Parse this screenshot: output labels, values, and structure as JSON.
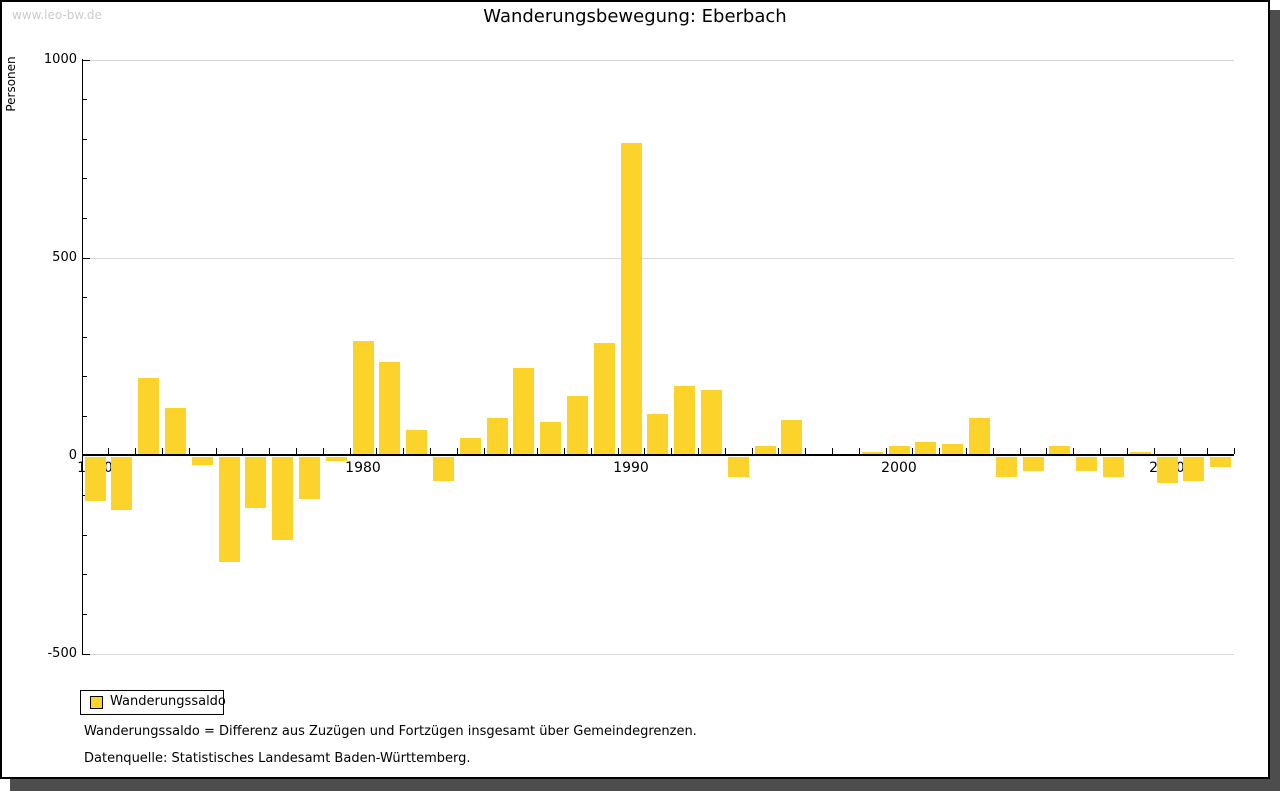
{
  "watermark": "www.leo-bw.de",
  "title": "Wanderungsbewegung: Eberbach",
  "legend": {
    "label": "Wanderungssaldo",
    "swatch_color": "#FCD32B"
  },
  "footnotes": [
    "Wanderungssaldo = Differenz aus Zuzügen und Fortzügen insgesamt über Gemeindegrenzen.",
    "Datenquelle: Statistisches Landesamt Baden-Württemberg."
  ],
  "colors": {
    "bar": "#FCD32B",
    "gridline": "#d8d8d8",
    "axis": "#000000",
    "watermark": "#cccccc",
    "window_shadow": "#4d4d4d"
  },
  "chart_data": {
    "type": "bar",
    "title": "Wanderungsbewegung: Eberbach",
    "xlabel": "",
    "ylabel": "Personen",
    "ylim": [
      -500,
      1000
    ],
    "yticks": [
      1000,
      500,
      0,
      -500
    ],
    "ytick_minor_interval": 100,
    "gridline_values": [
      1000,
      500,
      -500
    ],
    "grid": "horizontal major, light gray",
    "xticks_labeled": [
      1970,
      1980,
      1990,
      2000,
      2010
    ],
    "legend_position": "bottom-left",
    "series_name": "Wanderungssaldo",
    "bar_color": "#FCD32B",
    "years": [
      1970,
      1971,
      1972,
      1973,
      1974,
      1975,
      1976,
      1977,
      1978,
      1979,
      1980,
      1981,
      1982,
      1983,
      1984,
      1985,
      1986,
      1987,
      1988,
      1989,
      1990,
      1991,
      1992,
      1993,
      1994,
      1995,
      1996,
      1997,
      1998,
      1999,
      2000,
      2001,
      2002,
      2003,
      2004,
      2005,
      2006,
      2007,
      2008,
      2009,
      2010,
      2011,
      2012
    ],
    "values": [
      -110,
      -135,
      195,
      120,
      -20,
      -265,
      -130,
      -210,
      -105,
      -10,
      290,
      235,
      65,
      -60,
      45,
      95,
      220,
      85,
      150,
      285,
      790,
      105,
      175,
      165,
      -50,
      25,
      90,
      5,
      5,
      10,
      25,
      35,
      30,
      95,
      -50,
      -35,
      25,
      -35,
      -50,
      10,
      -65,
      -60,
      -25
    ]
  }
}
